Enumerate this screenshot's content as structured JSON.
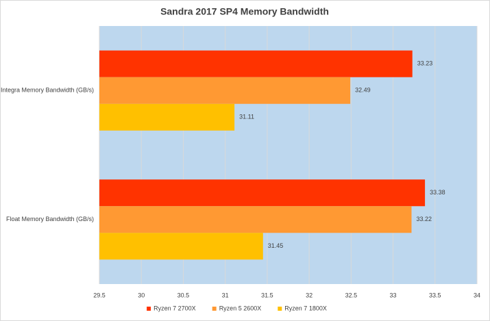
{
  "chart_data": {
    "type": "hbar",
    "title": "Sandra 2017 SP4 Memory Bandwidth",
    "categories": [
      "Integra Memory Bandwidth (GB/s)",
      "Float Memory Bandwidth (GB/s)"
    ],
    "series": [
      {
        "name": "Ryzen 7 2700X",
        "color": "#ff3300",
        "values": [
          33.23,
          33.38
        ]
      },
      {
        "name": "Ryzen 5 2600X",
        "color": "#ff9933",
        "values": [
          32.49,
          33.22
        ]
      },
      {
        "name": "Ryzen 7 1800X",
        "color": "#ffc000",
        "values": [
          31.11,
          31.45
        ]
      }
    ],
    "xlim": [
      29.5,
      34
    ],
    "xticks": [
      29.5,
      30,
      30.5,
      31,
      31.5,
      32,
      32.5,
      33,
      33.5,
      34
    ],
    "grid": true,
    "legend": "bottom",
    "plot_background": "#bdd7ee"
  }
}
